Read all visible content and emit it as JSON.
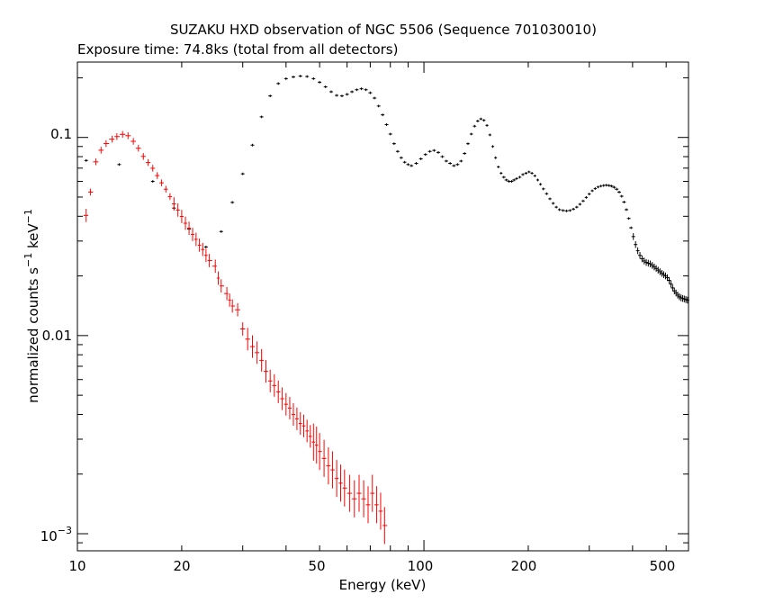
{
  "chart_data": {
    "type": "scatter",
    "title": "SUZAKU HXD observation of NGC 5506 (Sequence 701030010)",
    "subtitle": "Exposure time: 74.8ks (total from all detectors)",
    "xlabel": "Energy (keV)",
    "ylabel_prefix": "normalized counts s",
    "ylabel_mid": " keV",
    "ylabel_sup": "−1",
    "x_scale": "log",
    "y_scale": "log",
    "xlim": [
      10,
      580
    ],
    "ylim": [
      0.00082,
      0.24
    ],
    "x_tick_labels": [
      "10",
      "20",
      "50",
      "100",
      "200",
      "500"
    ],
    "y_tick_labels": [
      "0.1",
      "0.01"
    ],
    "y_tick_label_pow_base": "10",
    "y_tick_label_pow_exp": "−3",
    "grid": false,
    "colors": {
      "red_series": "#ff0000",
      "black_series": "#000000"
    },
    "series": [
      {
        "color": "red",
        "points": [
          [
            10.6,
            0.0404
          ],
          [
            10.9,
            0.053
          ],
          [
            11.3,
            0.0753
          ],
          [
            11.7,
            0.0862
          ],
          [
            12.1,
            0.0931
          ],
          [
            12.6,
            0.098
          ],
          [
            13.0,
            0.101
          ],
          [
            13.5,
            0.1036
          ],
          [
            14.0,
            0.102
          ],
          [
            14.5,
            0.0956
          ],
          [
            15.0,
            0.0882
          ],
          [
            15.5,
            0.0802
          ],
          [
            16.0,
            0.0747
          ],
          [
            16.5,
            0.0699
          ],
          [
            17.0,
            0.0642
          ],
          [
            17.5,
            0.059
          ],
          [
            18.0,
            0.0548
          ],
          [
            18.5,
            0.0503
          ],
          [
            19.0,
            0.0462
          ],
          [
            19.5,
            0.043
          ],
          [
            20.0,
            0.0399
          ],
          [
            20.5,
            0.0369
          ],
          [
            21.0,
            0.0348
          ],
          [
            21.5,
            0.0324
          ],
          [
            22.0,
            0.0306
          ],
          [
            22.5,
            0.0286
          ],
          [
            23.0,
            0.0272
          ],
          [
            23.5,
            0.0254
          ],
          [
            24.0,
            0.0239
          ],
          [
            25.0,
            0.0224
          ],
          [
            25.5,
            0.0195
          ],
          [
            26.0,
            0.0178
          ],
          [
            27.0,
            0.0163
          ],
          [
            27.5,
            0.0151
          ],
          [
            28.0,
            0.0141
          ],
          [
            29.0,
            0.0135
          ],
          [
            30.0,
            0.0108
          ],
          [
            31.0,
            0.0096
          ],
          [
            32.0,
            0.0088
          ],
          [
            33.0,
            0.0082
          ],
          [
            34.0,
            0.0075
          ],
          [
            35.0,
            0.0066
          ],
          [
            36.0,
            0.0059
          ],
          [
            37.0,
            0.0056
          ],
          [
            38.0,
            0.0052
          ],
          [
            39.0,
            0.0048
          ],
          [
            40.0,
            0.0045
          ],
          [
            41.0,
            0.0043
          ],
          [
            42.0,
            0.004
          ],
          [
            43.0,
            0.0038
          ],
          [
            44.0,
            0.0036
          ],
          [
            45.0,
            0.0035
          ],
          [
            46.0,
            0.0033
          ],
          [
            47.0,
            0.0031
          ],
          [
            48.0,
            0.0029
          ],
          [
            49.0,
            0.0028
          ],
          [
            50.0,
            0.0026
          ],
          [
            51.5,
            0.0024
          ],
          [
            53.0,
            0.0022
          ],
          [
            54.5,
            0.0021
          ],
          [
            56.0,
            0.0019
          ],
          [
            57.5,
            0.0018
          ],
          [
            59.0,
            0.0017
          ],
          [
            61.0,
            0.0016
          ],
          [
            63.0,
            0.0015
          ],
          [
            65.0,
            0.0016
          ],
          [
            67.0,
            0.0015
          ],
          [
            69.0,
            0.0014
          ],
          [
            71.0,
            0.0016
          ],
          [
            73.0,
            0.0014
          ],
          [
            75.0,
            0.0013
          ],
          [
            77.0,
            0.0011
          ]
        ]
      },
      {
        "color": "black",
        "points": [
          [
            10.6,
            0.0765
          ],
          [
            13.2,
            0.073
          ],
          [
            16.5,
            0.06
          ],
          [
            19.0,
            0.044
          ],
          [
            21.0,
            0.0345
          ],
          [
            23.5,
            0.028
          ],
          [
            26.0,
            0.0335
          ],
          [
            28.0,
            0.047
          ],
          [
            30.0,
            0.0655
          ],
          [
            32.0,
            0.0915
          ],
          [
            34.0,
            0.127
          ],
          [
            36.0,
            0.162
          ],
          [
            38.0,
            0.187
          ],
          [
            40.0,
            0.198
          ],
          [
            42.0,
            0.202
          ],
          [
            44.0,
            0.204
          ],
          [
            46.0,
            0.203
          ],
          [
            48.0,
            0.198
          ],
          [
            50.0,
            0.19
          ],
          [
            52.0,
            0.18
          ],
          [
            54.0,
            0.17
          ],
          [
            56.0,
            0.163
          ],
          [
            58.0,
            0.162
          ],
          [
            60.0,
            0.165
          ],
          [
            62.0,
            0.17
          ],
          [
            64.0,
            0.174
          ],
          [
            66.0,
            0.176
          ],
          [
            68.0,
            0.174
          ],
          [
            70.0,
            0.168
          ],
          [
            72.0,
            0.158
          ],
          [
            74.0,
            0.144
          ],
          [
            76.0,
            0.13
          ],
          [
            78.0,
            0.116
          ],
          [
            80.0,
            0.104
          ],
          [
            82.0,
            0.093
          ],
          [
            84.0,
            0.085
          ],
          [
            86.0,
            0.079
          ],
          [
            88.0,
            0.075
          ],
          [
            90.0,
            0.073
          ],
          [
            92.0,
            0.072
          ],
          [
            95.0,
            0.074
          ],
          [
            98.0,
            0.078
          ],
          [
            101.0,
            0.082
          ],
          [
            104.0,
            0.085
          ],
          [
            107.0,
            0.086
          ],
          [
            110.0,
            0.084
          ],
          [
            113.0,
            0.08
          ],
          [
            116.0,
            0.076
          ],
          [
            119.0,
            0.074
          ],
          [
            122.0,
            0.072
          ],
          [
            125.0,
            0.073
          ],
          [
            128.0,
            0.076
          ],
          [
            131.0,
            0.083
          ],
          [
            134.0,
            0.093
          ],
          [
            137.0,
            0.104
          ],
          [
            140.0,
            0.114
          ],
          [
            143.0,
            0.121
          ],
          [
            146.0,
            0.124
          ],
          [
            149.0,
            0.122
          ],
          [
            152.0,
            0.115
          ],
          [
            155.0,
            0.103
          ],
          [
            158.0,
            0.09
          ],
          [
            161.0,
            0.079
          ],
          [
            164.0,
            0.071
          ],
          [
            167.0,
            0.066
          ],
          [
            170.0,
            0.063
          ],
          [
            173.0,
            0.061
          ],
          [
            176.0,
            0.06
          ],
          [
            179.0,
            0.06
          ],
          [
            182.0,
            0.061
          ],
          [
            185.0,
            0.062
          ],
          [
            189.0,
            0.063
          ],
          [
            193.0,
            0.065
          ],
          [
            197.0,
            0.066
          ],
          [
            201.0,
            0.067
          ],
          [
            205.0,
            0.066
          ],
          [
            209.0,
            0.064
          ],
          [
            213.0,
            0.061
          ],
          [
            217.0,
            0.058
          ],
          [
            221.0,
            0.055
          ],
          [
            226.0,
            0.052
          ],
          [
            231.0,
            0.049
          ],
          [
            236.0,
            0.0465
          ],
          [
            241.0,
            0.0445
          ],
          [
            246.0,
            0.0432
          ],
          [
            252.0,
            0.0428
          ],
          [
            258.0,
            0.0426
          ],
          [
            264.0,
            0.0428
          ],
          [
            270.0,
            0.0435
          ],
          [
            276.0,
            0.0445
          ],
          [
            282.0,
            0.046
          ],
          [
            288.0,
            0.0478
          ],
          [
            294.0,
            0.0498
          ],
          [
            300.0,
            0.0518
          ],
          [
            306.0,
            0.0538
          ],
          [
            312.0,
            0.0552
          ],
          [
            318.0,
            0.0562
          ],
          [
            324.0,
            0.0568
          ],
          [
            330.0,
            0.0572
          ],
          [
            336.0,
            0.0574
          ],
          [
            342.0,
            0.0572
          ],
          [
            348.0,
            0.0568
          ],
          [
            354.0,
            0.056
          ],
          [
            360.0,
            0.0548
          ],
          [
            366.0,
            0.053
          ],
          [
            372.0,
            0.0505
          ],
          [
            378.0,
            0.0472
          ],
          [
            384.0,
            0.0432
          ],
          [
            390.0,
            0.039
          ],
          [
            396.0,
            0.035
          ],
          [
            402.0,
            0.0316
          ],
          [
            408.0,
            0.0288
          ],
          [
            414.0,
            0.0268
          ],
          [
            420.0,
            0.0254
          ],
          [
            426.0,
            0.0244
          ],
          [
            432.0,
            0.0238
          ],
          [
            438.0,
            0.0234
          ],
          [
            444.0,
            0.0232
          ],
          [
            450.0,
            0.023
          ],
          [
            456.0,
            0.0226
          ],
          [
            462.0,
            0.0222
          ],
          [
            468.0,
            0.0218
          ],
          [
            474.0,
            0.0214
          ],
          [
            480.0,
            0.021
          ],
          [
            486.0,
            0.0206
          ],
          [
            492.0,
            0.0203
          ],
          [
            498.0,
            0.02
          ],
          [
            504.0,
            0.0196
          ],
          [
            510.0,
            0.019
          ],
          [
            516.0,
            0.0182
          ],
          [
            522.0,
            0.0174
          ],
          [
            528.0,
            0.0168
          ],
          [
            534.0,
            0.0164
          ],
          [
            540.0,
            0.016
          ],
          [
            546.0,
            0.0157
          ],
          [
            552.0,
            0.0155
          ],
          [
            558.0,
            0.0154
          ],
          [
            564.0,
            0.0153
          ],
          [
            570.0,
            0.0152
          ],
          [
            576.0,
            0.0151
          ]
        ]
      }
    ]
  }
}
